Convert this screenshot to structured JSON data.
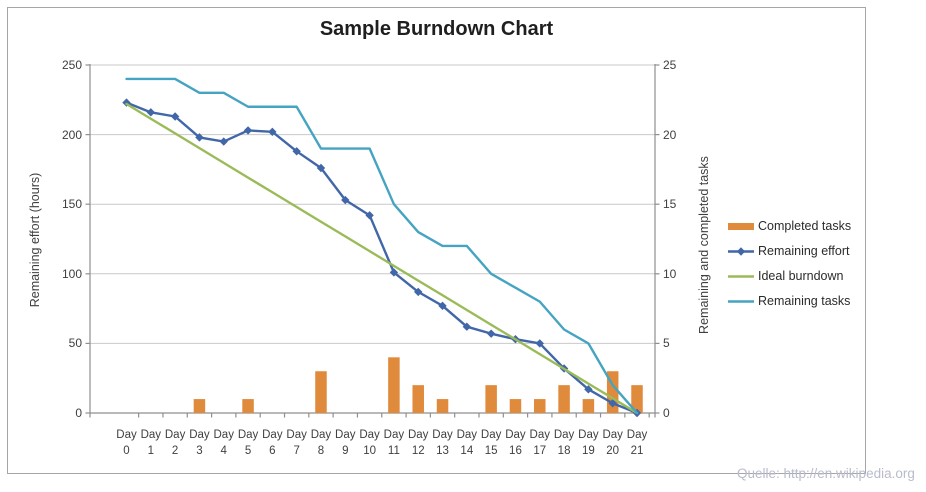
{
  "title": "Sample Burndown Chart",
  "watermark": "Quelle: http://en.wikipedia.org",
  "chart_data": {
    "type": "combo",
    "title": "Sample Burndown Chart",
    "x_label_word": "Day",
    "x_values": [
      0,
      1,
      2,
      3,
      4,
      5,
      6,
      7,
      8,
      9,
      10,
      11,
      12,
      13,
      14,
      15,
      16,
      17,
      18,
      19,
      20,
      21
    ],
    "left_axis": {
      "label": "Remaining effort (hours)",
      "min": 0,
      "max": 250,
      "tick_step": 50
    },
    "right_axis": {
      "label": "Remaining and completed tasks",
      "min": 0,
      "max": 25,
      "tick_step": 5
    },
    "grid": true,
    "legend_position": "right",
    "series": [
      {
        "name": "Completed tasks",
        "type": "bar",
        "axis": "right",
        "color": "#E08A3C",
        "values": [
          0,
          0,
          0,
          1,
          0,
          1,
          0,
          0,
          3,
          0,
          0,
          4,
          2,
          1,
          0,
          2,
          1,
          1,
          2,
          1,
          3,
          2
        ]
      },
      {
        "name": "Remaining effort",
        "type": "line",
        "marker": "diamond",
        "axis": "left",
        "color": "#4167A8",
        "values": [
          223,
          216,
          213,
          198,
          195,
          203,
          202,
          188,
          176,
          153,
          142,
          101,
          87,
          77,
          62,
          57,
          53,
          50,
          32,
          17,
          7,
          0
        ]
      },
      {
        "name": "Ideal burndown",
        "type": "line",
        "axis": "left",
        "color": "#9BBB59",
        "values": [
          222,
          211.4,
          200.9,
          190.3,
          179.7,
          169.1,
          158.6,
          148,
          137.4,
          126.9,
          116.3,
          105.7,
          95.1,
          84.6,
          74,
          63.4,
          52.9,
          42.3,
          31.7,
          21.1,
          10.6,
          0
        ]
      },
      {
        "name": "Remaining tasks",
        "type": "line",
        "axis": "right",
        "color": "#45A4C1",
        "values": [
          24,
          24,
          24,
          23,
          23,
          22,
          22,
          22,
          19,
          19,
          19,
          15,
          13,
          12,
          12,
          10,
          9,
          8,
          6,
          5,
          2,
          0
        ]
      }
    ]
  },
  "colors": {
    "grid": "#C9C9C9",
    "axis": "#8F8F8F",
    "text": "#3F3F3F",
    "title_text": "#1F1F1F",
    "frame": "#A6A6A6",
    "watermark": "#B9BCCB",
    "background": "#FFFFFF"
  }
}
